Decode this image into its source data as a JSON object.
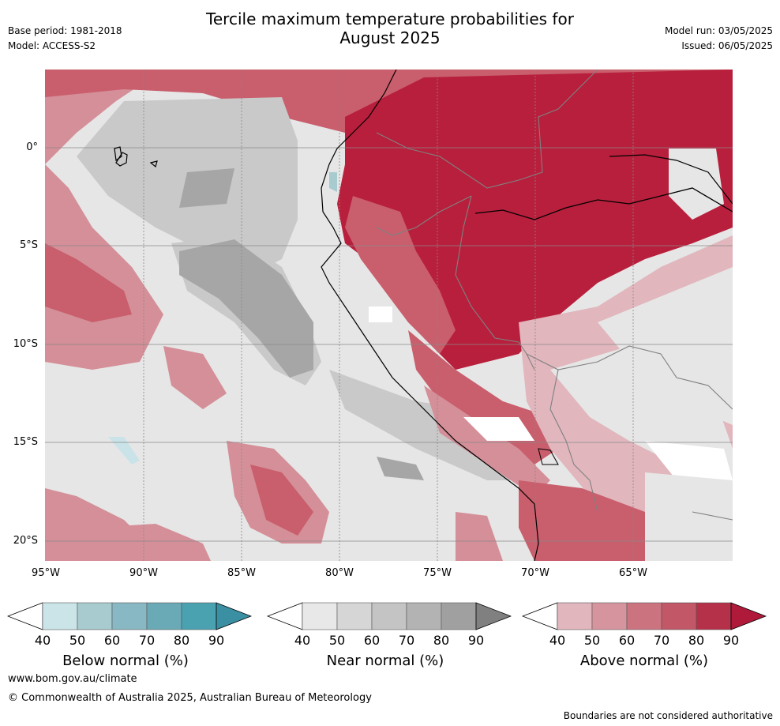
{
  "header": {
    "title_line1": "Tercile maximum temperature probabilities for",
    "title_line2": "August 2025",
    "base_period": "Base period: 1981-2018",
    "model": "Model: ACCESS-S2",
    "model_run": "Model run: 03/05/2025",
    "issued": "Issued: 06/05/2025"
  },
  "map": {
    "region": "Western South America and eastern Pacific",
    "lat_labels": [
      "0°",
      "5°S",
      "10°S",
      "15°S",
      "20°S"
    ],
    "lon_labels": [
      "95°W",
      "90°W",
      "85°W",
      "80°W",
      "75°W",
      "70°W",
      "65°W"
    ],
    "colors": {
      "ocean_near_normal_light": "#e6e6e6",
      "near_normal_mid": "#c9c9c9",
      "near_normal_dark": "#a6a6a6",
      "above_light": "#e1b6bd",
      "above_mid": "#d48f98",
      "above_strong": "#c95e6d",
      "above_very_strong": "#b81f3c",
      "below_light": "#c9e3e8",
      "land_border": "#808080",
      "coastline": "#000000"
    }
  },
  "legend": {
    "below": {
      "title": "Below normal (%)",
      "ticks": [
        "40",
        "50",
        "60",
        "70",
        "80",
        "90"
      ],
      "colors": [
        "#ffffff",
        "#cbe4e8",
        "#a8cbd0",
        "#88b8c3",
        "#6aaab6",
        "#4aa1b0",
        "#3a8fa3"
      ]
    },
    "near": {
      "title": "Near normal (%)",
      "ticks": [
        "40",
        "50",
        "60",
        "70",
        "80",
        "90"
      ],
      "colors": [
        "#ffffff",
        "#e8e8e8",
        "#d6d6d6",
        "#c4c4c4",
        "#b3b3b3",
        "#a0a0a0",
        "#808080"
      ]
    },
    "above": {
      "title": "Above normal (%)",
      "ticks": [
        "40",
        "50",
        "60",
        "70",
        "80",
        "90"
      ],
      "colors": [
        "#ffffff",
        "#e1b6bd",
        "#d6959e",
        "#cb7480",
        "#c15767",
        "#b53049",
        "#b01a3a"
      ]
    }
  },
  "footer": {
    "url": "www.bom.gov.au/climate",
    "copyright": "© Commonwealth of Australia 2025, Australian Bureau of Meteorology",
    "note": "Boundaries are not considered authoritative"
  }
}
